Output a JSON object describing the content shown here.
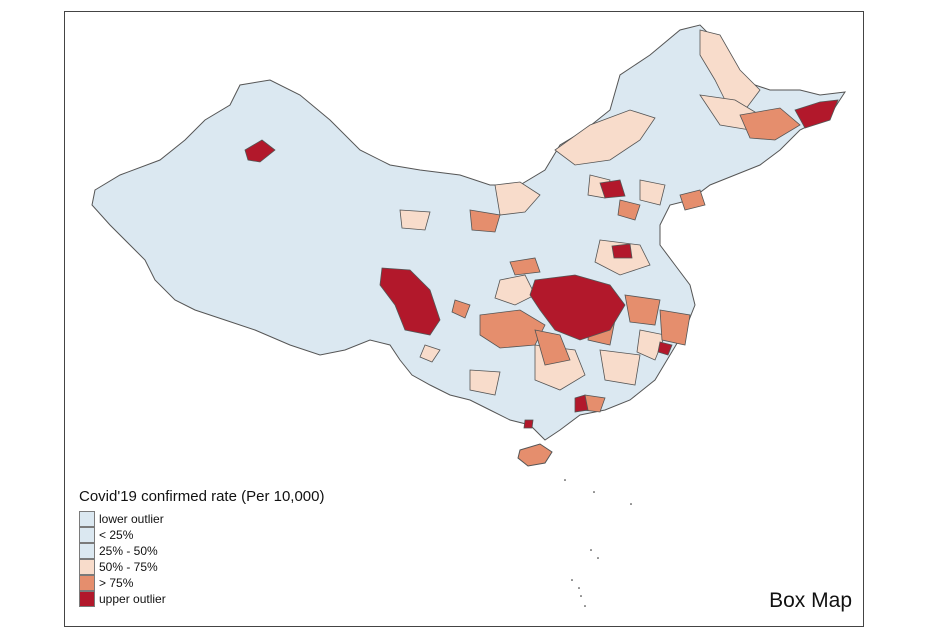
{
  "legend": {
    "title": "Covid'19 confirmed rate (Per 10,000)",
    "classes": [
      {
        "label": "lower outlier",
        "color": "#dbe8f1"
      },
      {
        "label": "< 25%",
        "color": "#dbe8f1"
      },
      {
        "label": "25% - 50%",
        "color": "#dbe8f1"
      },
      {
        "label": "50% - 75%",
        "color": "#f8dccb"
      },
      {
        "label": "> 75%",
        "color": "#e58e6d"
      },
      {
        "label": "upper outlier",
        "color": "#b2182b"
      }
    ]
  },
  "map_label": "Box Map",
  "colors": {
    "base": "#dbe8f1",
    "mid_high": "#f8dccb",
    "high": "#e58e6d",
    "outlier": "#b2182b",
    "border": "#555555"
  }
}
